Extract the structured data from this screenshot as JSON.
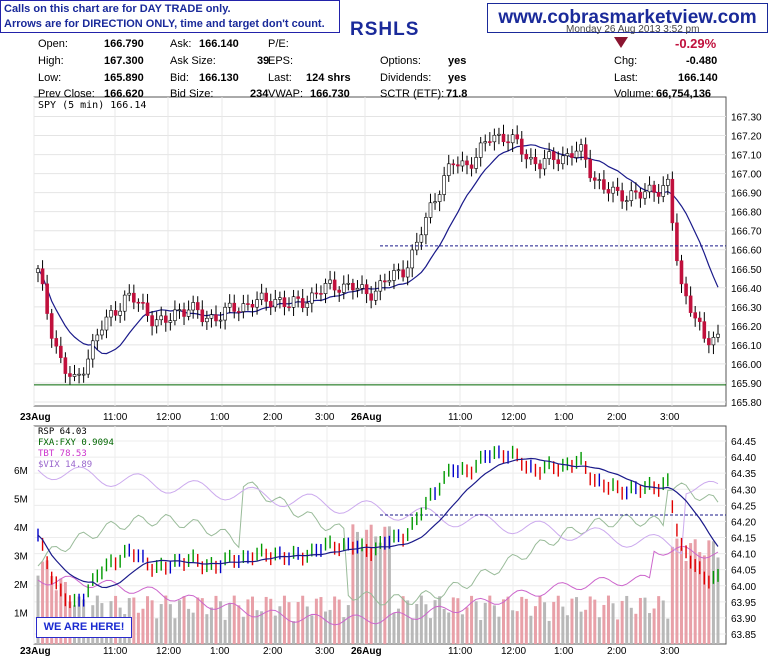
{
  "disclaimer": {
    "line1": "Calls on this chart are for DAY TRADE only.",
    "line2": "Arrows are for DIRECTION ONLY, time and target don't count."
  },
  "website": "www.cobrasmarketview.com",
  "ticker": "RSHLS",
  "datetime": "Monday 26 Aug 2013 3:52 pm",
  "quote": {
    "open_label": "Open:",
    "open": "166.790",
    "high_label": "High:",
    "high": "167.300",
    "low_label": "Low:",
    "low": "165.890",
    "prev_close_label": "Prev Close:",
    "prev_close": "166.620",
    "ask_label": "Ask:",
    "ask": "166.140",
    "ask_size_label": "Ask Size:",
    "ask_size": "39",
    "bid_label": "Bid:",
    "bid": "166.130",
    "bid_size_label": "Bid Size:",
    "bid_size": "234",
    "pe_label": "P/E:",
    "pe": "",
    "eps_label": "EPS:",
    "eps": "",
    "last_size_label": "Last:",
    "last_size": "124 shrs",
    "vwap_label": "VWAP:",
    "vwap": "166.730",
    "options_label": "Options:",
    "options": "yes",
    "dividends_label": "Dividends:",
    "dividends": "yes",
    "sctr_label": "SCTR (ETF):",
    "sctr": "71.8",
    "change_pct": "-0.29%",
    "chg_label": "Chg:",
    "chg": "-0.480",
    "last_label": "Last:",
    "last": "166.140",
    "volume_label": "Volume:",
    "volume": "66,754,136"
  },
  "badge": "WE ARE HERE!",
  "colors": {
    "up": "#ffffff",
    "down": "#c0103c",
    "ma": "#1a1a8a",
    "support": "#006600",
    "rsp_up": "#009900",
    "rsp_down": "#e00000",
    "rsp_flat": "#0000cc",
    "fxa": "#99bb99",
    "tbt": "#cc66cc",
    "vix": "#ccaaee",
    "volume": "#aaaaaa",
    "brand": "#1a2a9a"
  },
  "chart_data": [
    {
      "type": "candlestick",
      "title": "SPY (5 min) 166.14",
      "ylim": [
        165.8,
        167.35
      ],
      "yticks": [
        "167.30",
        "167.20",
        "167.10",
        "167.00",
        "166.90",
        "166.80",
        "166.70",
        "166.60",
        "166.50",
        "166.40",
        "166.30",
        "166.20",
        "166.10",
        "166.00",
        "165.90",
        "165.80"
      ],
      "xticks": [
        "23Aug",
        "11:00",
        "12:00",
        "1:00",
        "2:00",
        "3:00",
        "26Aug",
        "11:00",
        "12:00",
        "1:00",
        "2:00",
        "3:00"
      ],
      "overlays": [
        "moving average",
        "prev close 166.62 (dashed)",
        "support 165.89 (solid)"
      ],
      "close_path": [
        166.48,
        166.2,
        165.97,
        165.9,
        166.05,
        166.18,
        166.28,
        166.35,
        166.32,
        166.25,
        166.2,
        166.28,
        166.3,
        166.24,
        166.25,
        166.27,
        166.3,
        166.33,
        166.32,
        166.35,
        166.3,
        166.33,
        166.37,
        166.4,
        166.42,
        166.4,
        166.37,
        166.4,
        166.45,
        166.5,
        166.6,
        166.8,
        166.95,
        167.05,
        167.05,
        167.1,
        167.2,
        167.2,
        167.15,
        167.08,
        167.05,
        167.08,
        167.1,
        167.12,
        167.0,
        166.92,
        166.88,
        166.9,
        166.88,
        166.92,
        166.95,
        166.4,
        166.3,
        166.1,
        166.14
      ]
    },
    {
      "type": "line",
      "series": [
        {
          "name": "RSP 64.03"
        },
        {
          "name": "FXA:FXY 0.9094"
        },
        {
          "name": "TBT 78.53"
        },
        {
          "name": "$VIX 14.89"
        }
      ],
      "yticks_right": [
        "64.45",
        "64.40",
        "64.35",
        "64.30",
        "64.25",
        "64.20",
        "64.15",
        "64.10",
        "64.05",
        "64.00",
        "63.95",
        "63.90",
        "63.85"
      ],
      "yticks_left": [
        "6M",
        "5M",
        "4M",
        "3M",
        "2M",
        "1M"
      ],
      "xticks": [
        "23Aug",
        "11:00",
        "12:00",
        "1:00",
        "2:00",
        "3:00",
        "26Aug",
        "11:00",
        "12:00",
        "1:00",
        "2:00",
        "3:00"
      ],
      "overlays": [
        "moving average",
        "dashed reference 64.22",
        "volume bars"
      ]
    }
  ]
}
